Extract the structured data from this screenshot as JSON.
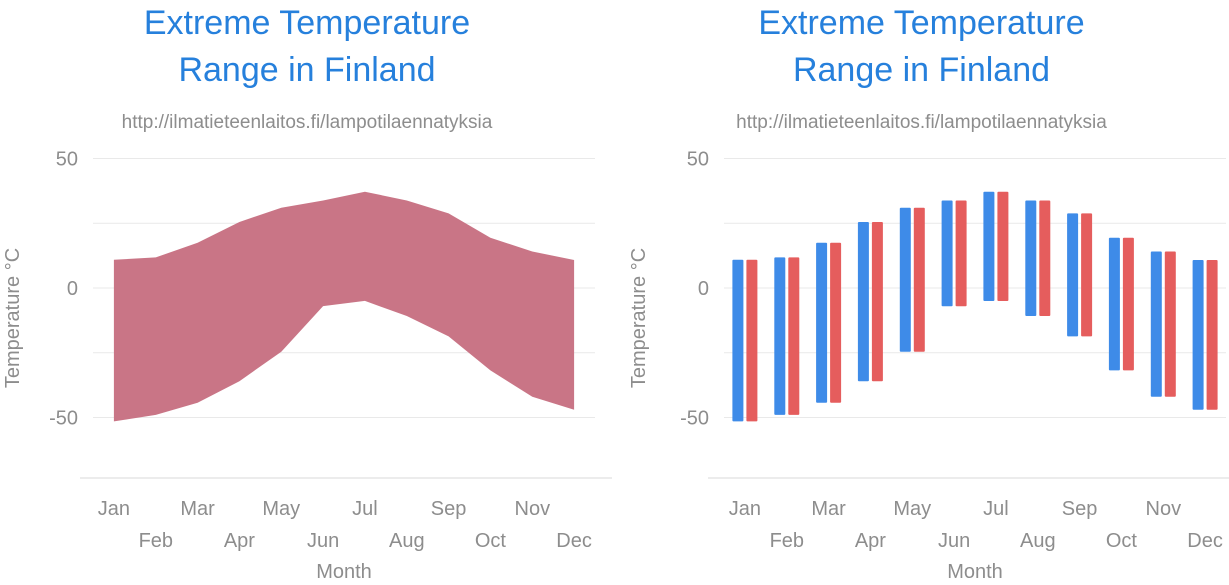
{
  "theme": {
    "title_color": "#2680DC",
    "label_color": "#8D8D8D",
    "gridline_color": "#E9E9E9",
    "axis_line_color": "#D8D8D8",
    "background": "#ffffff"
  },
  "charts": [
    {
      "title_line1": "Extreme Temperature",
      "title_line2": "Range in Finland",
      "subtitle": "http://ilmatieteenlaitos.fi/lampotilaennatyksia"
    },
    {
      "title_line1": "Extreme Temperature",
      "title_line2": "Range in Finland",
      "subtitle": "http://ilmatieteenlaitos.fi/lampotilaennatyksia"
    }
  ],
  "chart_data": [
    {
      "type": "area",
      "variant": "range-area",
      "title": "Extreme Temperature Range in Finland",
      "subtitle": "http://ilmatieteenlaitos.fi/lampotilaennatyksia",
      "xlabel": "Month",
      "ylabel": "Temperature °C",
      "categories": [
        "Jan",
        "Feb",
        "Mar",
        "Apr",
        "May",
        "Jun",
        "Jul",
        "Aug",
        "Sep",
        "Oct",
        "Nov",
        "Dec"
      ],
      "x_label_row_top": [
        "Jan",
        "Mar",
        "May",
        "Jul",
        "Sep",
        "Nov"
      ],
      "x_label_row_bottom": [
        "Feb",
        "Apr",
        "Jun",
        "Aug",
        "Oct",
        "Dec"
      ],
      "series": [
        {
          "name": "temperature-range",
          "color": "#C97586",
          "max": [
            10.9,
            11.8,
            17.5,
            25.5,
            31.0,
            33.8,
            37.2,
            33.8,
            28.8,
            19.4,
            14.1,
            10.8
          ],
          "min": [
            -51.5,
            -49.0,
            -44.3,
            -36.0,
            -24.6,
            -7.0,
            -5.0,
            -10.8,
            -18.7,
            -31.8,
            -42.0,
            -47.0
          ]
        }
      ],
      "ylim": [
        -50,
        50
      ],
      "yticks_gridlines": [
        50,
        25,
        0,
        -25,
        -50
      ],
      "yticks_labeled": [
        50,
        0,
        -50
      ],
      "grid": true,
      "legend": "none"
    },
    {
      "type": "bar",
      "variant": "range-column",
      "title": "Extreme Temperature Range in Finland",
      "subtitle": "http://ilmatieteenlaitos.fi/lampotilaennatyksia",
      "xlabel": "Month",
      "ylabel": "Temperature °C",
      "categories": [
        "Jan",
        "Feb",
        "Mar",
        "Apr",
        "May",
        "Jun",
        "Jul",
        "Aug",
        "Sep",
        "Oct",
        "Nov",
        "Dec"
      ],
      "x_label_row_top": [
        "Jan",
        "Mar",
        "May",
        "Jul",
        "Sep",
        "Nov"
      ],
      "x_label_row_bottom": [
        "Feb",
        "Apr",
        "Jun",
        "Aug",
        "Oct",
        "Dec"
      ],
      "series": [
        {
          "name": "series-blue",
          "color": "#3E8BE8",
          "max": [
            10.9,
            11.8,
            17.5,
            25.5,
            31.0,
            33.8,
            37.2,
            33.8,
            28.8,
            19.4,
            14.1,
            10.8
          ],
          "min": [
            -51.5,
            -49.0,
            -44.3,
            -36.0,
            -24.6,
            -7.0,
            -5.0,
            -10.8,
            -18.7,
            -31.8,
            -42.0,
            -47.0
          ]
        },
        {
          "name": "series-red",
          "color": "#E55D5D",
          "max": [
            10.9,
            11.8,
            17.5,
            25.5,
            31.0,
            33.8,
            37.2,
            33.8,
            28.8,
            19.4,
            14.1,
            10.8
          ],
          "min": [
            -51.5,
            -49.0,
            -44.3,
            -36.0,
            -24.6,
            -7.0,
            -5.0,
            -10.8,
            -18.7,
            -31.8,
            -42.0,
            -47.0
          ]
        }
      ],
      "ylim": [
        -50,
        50
      ],
      "yticks_gridlines": [
        50,
        25,
        0,
        -25,
        -50
      ],
      "yticks_labeled": [
        50,
        0,
        -50
      ],
      "grid": true,
      "legend": "none"
    }
  ]
}
